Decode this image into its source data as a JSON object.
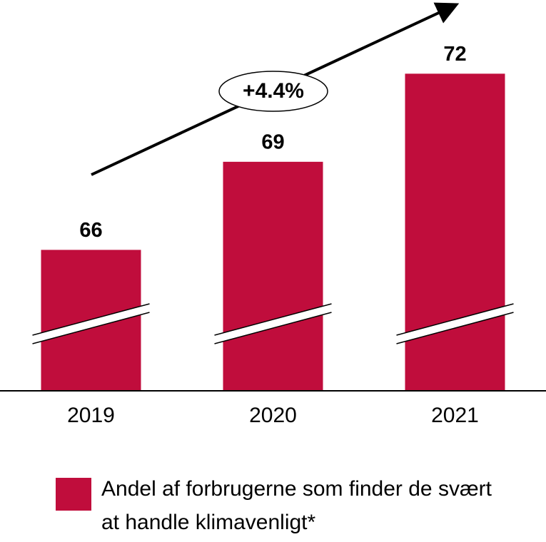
{
  "chart_data": {
    "type": "bar",
    "categories": [
      "2019",
      "2020",
      "2021"
    ],
    "series": [
      {
        "name": "Andel af forbrugerne som finder de svært at handle klimavenligt*",
        "color": "#c00d3c",
        "values": [
          66,
          69,
          72
        ]
      }
    ],
    "ylim": [
      61.2,
      74
    ],
    "annotation": "+4.4%"
  }
}
